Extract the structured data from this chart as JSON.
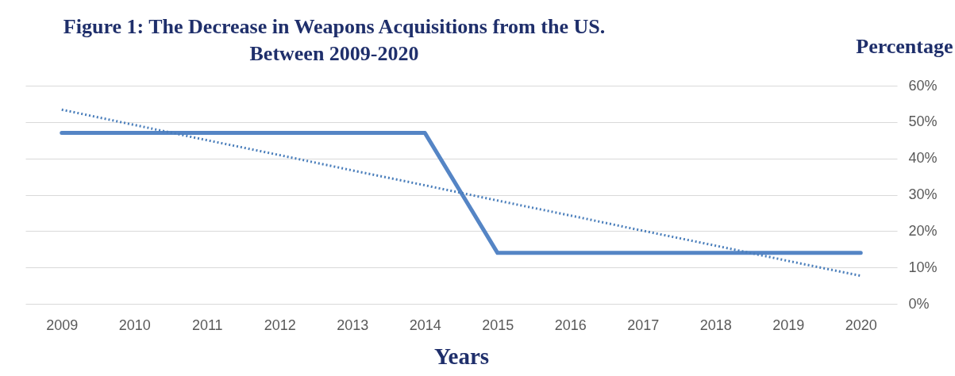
{
  "chart_data": {
    "type": "line",
    "title": "Figure 1: The Decrease in Weapons Acquisitions from the US. Between 2009-2020",
    "xlabel": "Years",
    "ylabel": "Percentage",
    "categories": [
      "2009",
      "2010",
      "2011",
      "2012",
      "2013",
      "2014",
      "2015",
      "2016",
      "2017",
      "2018",
      "2019",
      "2020"
    ],
    "series": [
      {
        "color": "#5585c5",
        "values": [
          47,
          47,
          47,
          47,
          47,
          47,
          14,
          14,
          14,
          14,
          14,
          14
        ]
      },
      {
        "type": "line",
        "color": "#4a7ebb",
        "line_style": "dotted",
        "values": [
          53.4,
          49.2,
          45.0,
          40.9,
          36.7,
          32.6,
          28.4,
          24.3,
          20.1,
          16.0,
          11.8,
          7.7
        ]
      }
    ],
    "ylim": [
      0,
      60
    ],
    "yticks": [
      {
        "value": 0,
        "label": "0%"
      },
      {
        "value": 10,
        "label": "10%"
      },
      {
        "value": 20,
        "label": "20%"
      },
      {
        "value": 30,
        "label": "30%"
      },
      {
        "value": 40,
        "label": "40%"
      },
      {
        "value": 50,
        "label": "50%"
      },
      {
        "value": 60,
        "label": "60%"
      }
    ],
    "grid": "y"
  }
}
